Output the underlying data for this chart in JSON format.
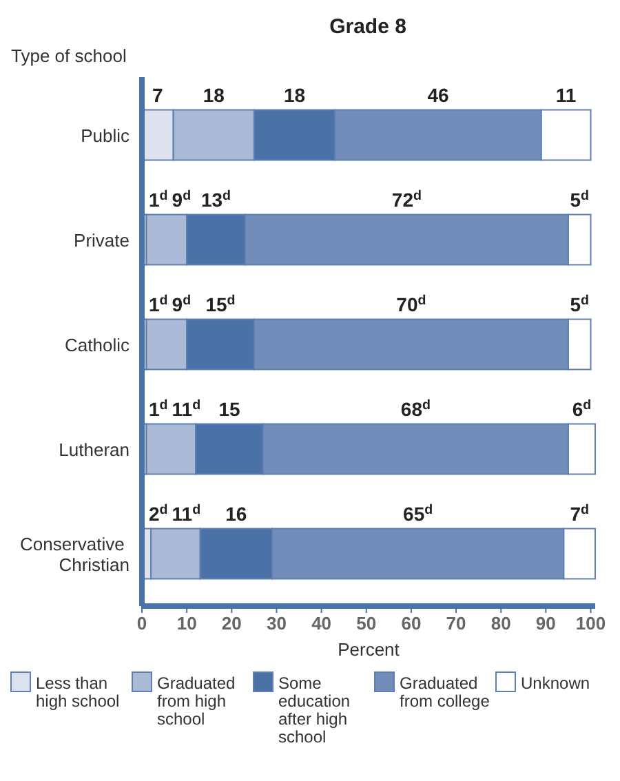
{
  "chart_data": {
    "type": "bar",
    "orientation": "horizontal",
    "stacked": true,
    "title": "Grade 8",
    "ylabel": "Type of school",
    "xlabel": "Percent",
    "categories": [
      "Public",
      "Private",
      "Catholic",
      "Lutheran",
      "Conservative Christian"
    ],
    "xlim": [
      0,
      101
    ],
    "xticks": [
      0,
      10,
      20,
      30,
      40,
      50,
      60,
      70,
      80,
      90,
      100
    ],
    "grid": false,
    "legend": "bottom",
    "series": [
      {
        "name": "Less than high school",
        "color": "#dde3ee",
        "values": [
          7,
          1,
          1,
          1,
          2
        ],
        "value_labels": [
          "7",
          "1$^{d}$",
          "1$^{d}$",
          "1$^{d}$",
          "2$^{d}$"
        ]
      },
      {
        "name": "Graduated from high school",
        "color": "#aab9d6",
        "values": [
          18,
          9,
          9,
          11,
          11
        ],
        "value_labels": [
          "18",
          "9$^{d}$",
          "9$^{d}$",
          "11$^{d}$",
          "11$^{d}$"
        ]
      },
      {
        "name": "Some education after high school",
        "color": "#4a72a6",
        "values": [
          18,
          13,
          15,
          15,
          16
        ],
        "value_labels": [
          "18",
          "13$^{d}$",
          "15$^{d}$",
          "15",
          "16"
        ]
      },
      {
        "name": "Graduated from college",
        "color": "#738dba",
        "values": [
          46,
          72,
          70,
          68,
          65
        ],
        "value_labels": [
          "46",
          "72$^{d}$",
          "70$^{d}$",
          "68$^{d}$",
          "65$^{d}$"
        ]
      },
      {
        "name": "Unknown",
        "color": "#ffffff",
        "values": [
          11,
          5,
          5,
          6,
          7
        ],
        "value_labels": [
          "11",
          "5$^{d}$",
          "5$^{d}$",
          "6$^{d}$",
          "7$^{d}$"
        ]
      }
    ]
  }
}
